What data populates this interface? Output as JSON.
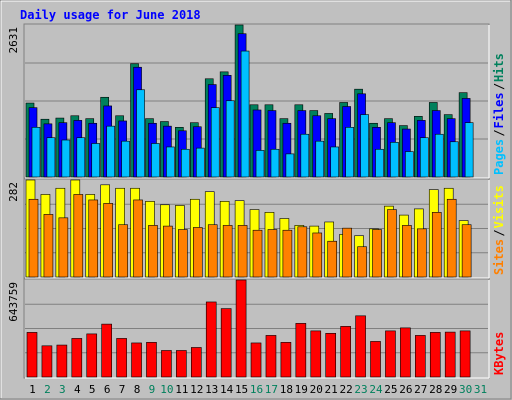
{
  "title": "Daily usage for June 2018",
  "colors": {
    "background": "#c0c0c0",
    "title": "#0000ff",
    "hits": "#00805c",
    "files": "#0000ff",
    "pages": "#00c0ff",
    "visits": "#ffff00",
    "sites": "#ff8000",
    "kbytes": "#ff0000",
    "weekend_label": "#00805c",
    "weekday_label": "#000000"
  },
  "chart_data": [
    {
      "type": "bar",
      "categories": [
        "1",
        "2",
        "3",
        "4",
        "5",
        "6",
        "7",
        "8",
        "9",
        "10",
        "11",
        "12",
        "13",
        "14",
        "15",
        "16",
        "17",
        "18",
        "19",
        "20",
        "21",
        "22",
        "23",
        "24",
        "25",
        "26",
        "27",
        "28",
        "29",
        "30",
        "31"
      ],
      "weekend_days": [
        "2",
        "3",
        "9",
        "10",
        "16",
        "17",
        "23",
        "24",
        "30",
        "31"
      ],
      "ymax_label": "2631",
      "ylim": [
        0,
        2631
      ],
      "grid": true,
      "side_labels": [
        "Pages",
        "Files",
        "Hits"
      ],
      "series": [
        {
          "name": "Hits",
          "values": [
            1280,
            1000,
            1020,
            1060,
            1010,
            1380,
            1060,
            1960,
            1010,
            960,
            860,
            940,
            1700,
            1820,
            2631,
            1250,
            1250,
            1010,
            1250,
            1150,
            1100,
            1290,
            1520,
            930,
            1010,
            890,
            1050,
            1290,
            1080,
            1460,
            0
          ]
        },
        {
          "name": "Files",
          "values": [
            1200,
            920,
            940,
            980,
            930,
            1230,
            970,
            1900,
            930,
            880,
            800,
            870,
            1600,
            1760,
            2480,
            1160,
            1150,
            930,
            1150,
            1060,
            1010,
            1220,
            1440,
            860,
            940,
            830,
            980,
            1150,
            1010,
            1360,
            0
          ]
        },
        {
          "name": "Pages",
          "values": [
            860,
            680,
            640,
            680,
            580,
            880,
            620,
            1510,
            580,
            520,
            480,
            500,
            1200,
            1320,
            2180,
            460,
            480,
            400,
            740,
            620,
            520,
            860,
            1080,
            480,
            600,
            440,
            680,
            740,
            610,
            940,
            0
          ]
        }
      ]
    },
    {
      "type": "bar",
      "categories": [
        "1",
        "2",
        "3",
        "4",
        "5",
        "6",
        "7",
        "8",
        "9",
        "10",
        "11",
        "12",
        "13",
        "14",
        "15",
        "16",
        "17",
        "18",
        "19",
        "20",
        "21",
        "22",
        "23",
        "24",
        "25",
        "26",
        "27",
        "28",
        "29",
        "30",
        "31"
      ],
      "ymax_label": "282",
      "ylim": [
        0,
        282
      ],
      "grid": true,
      "side_labels": [
        "Sites",
        "Visits"
      ],
      "series": [
        {
          "name": "Visits",
          "values": [
            282,
            240,
            258,
            282,
            240,
            268,
            258,
            258,
            220,
            210,
            208,
            226,
            248,
            220,
            222,
            196,
            188,
            170,
            150,
            148,
            160,
            124,
            120,
            140,
            206,
            180,
            198,
            254,
            258,
            164,
            0
          ]
        },
        {
          "name": "Sites",
          "values": [
            226,
            182,
            172,
            240,
            224,
            214,
            152,
            224,
            150,
            148,
            138,
            144,
            152,
            150,
            150,
            136,
            138,
            136,
            146,
            128,
            104,
            142,
            88,
            138,
            196,
            150,
            140,
            188,
            226,
            152,
            0
          ]
        }
      ]
    },
    {
      "type": "bar",
      "categories": [
        "1",
        "2",
        "3",
        "4",
        "5",
        "6",
        "7",
        "8",
        "9",
        "10",
        "11",
        "12",
        "13",
        "14",
        "15",
        "16",
        "17",
        "18",
        "19",
        "20",
        "21",
        "22",
        "23",
        "24",
        "25",
        "26",
        "27",
        "28",
        "29",
        "30",
        "31"
      ],
      "ymax_label": "643759",
      "ylim": [
        0,
        643759
      ],
      "grid": true,
      "side_labels": [
        "KBytes"
      ],
      "series": [
        {
          "name": "KBytes",
          "values": [
            296000,
            207000,
            212000,
            256000,
            286000,
            351000,
            256000,
            226000,
            230000,
            176000,
            176000,
            196000,
            498000,
            454000,
            643759,
            226000,
            276000,
            230000,
            356000,
            306000,
            290000,
            336000,
            406000,
            236000,
            306000,
            326000,
            276000,
            296000,
            298000,
            306000,
            0
          ]
        }
      ]
    }
  ]
}
